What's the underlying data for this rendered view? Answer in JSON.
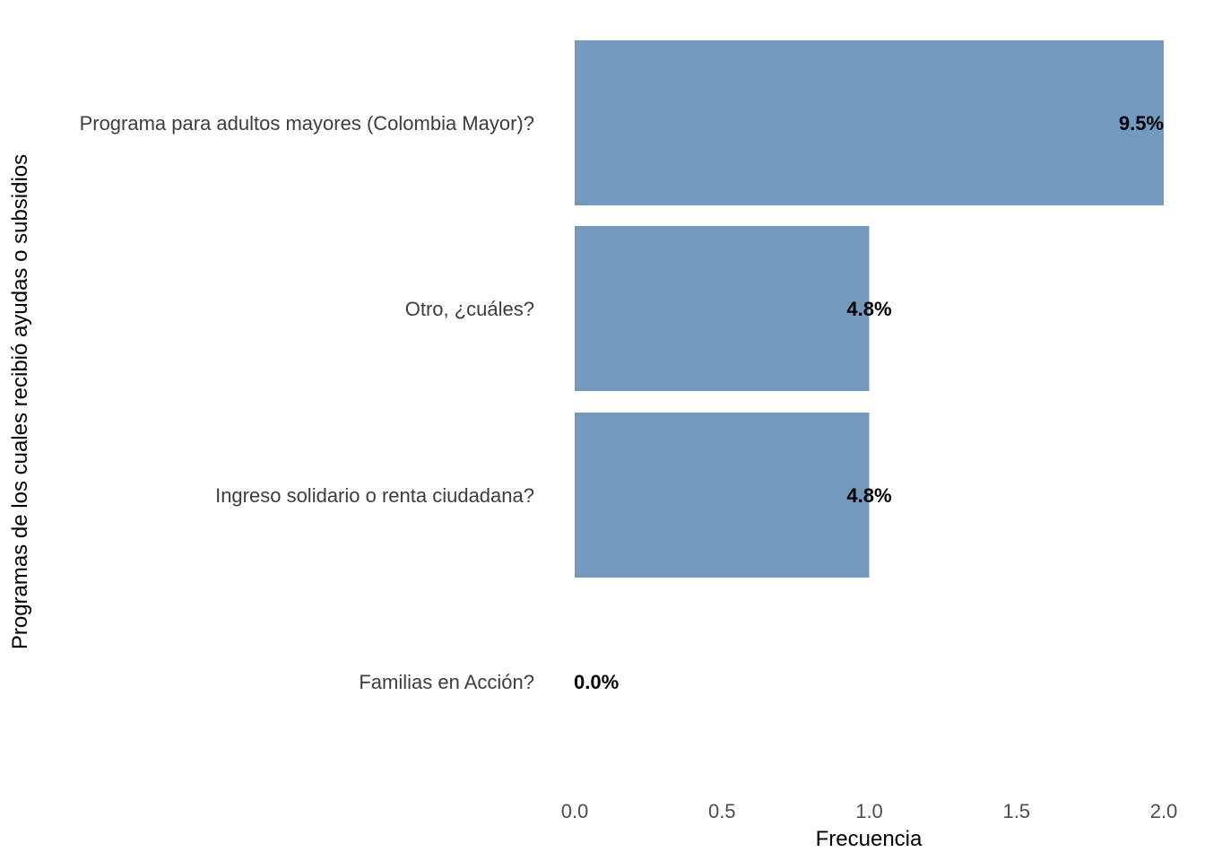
{
  "chart_data": {
    "type": "bar",
    "orientation": "horizontal",
    "categories": [
      "Programa para adultos mayores (Colombia Mayor)?",
      "Otro, ¿cuáles?",
      "Ingreso solidario o renta ciudadana?",
      "Familias en Acción?"
    ],
    "values": [
      2,
      1,
      1,
      0
    ],
    "data_labels": [
      "9.5%",
      "4.8%",
      "4.8%",
      "0.0%"
    ],
    "xlabel": "Frecuencia",
    "ylabel": "Programas de los cuales recibió ayudas o subsidios",
    "xlim": [
      0,
      2
    ],
    "x_ticks": [
      "0.0",
      "0.5",
      "1.0",
      "1.5",
      "2.0"
    ],
    "bar_color": "#7399c1",
    "grid": false,
    "legend": "none"
  }
}
